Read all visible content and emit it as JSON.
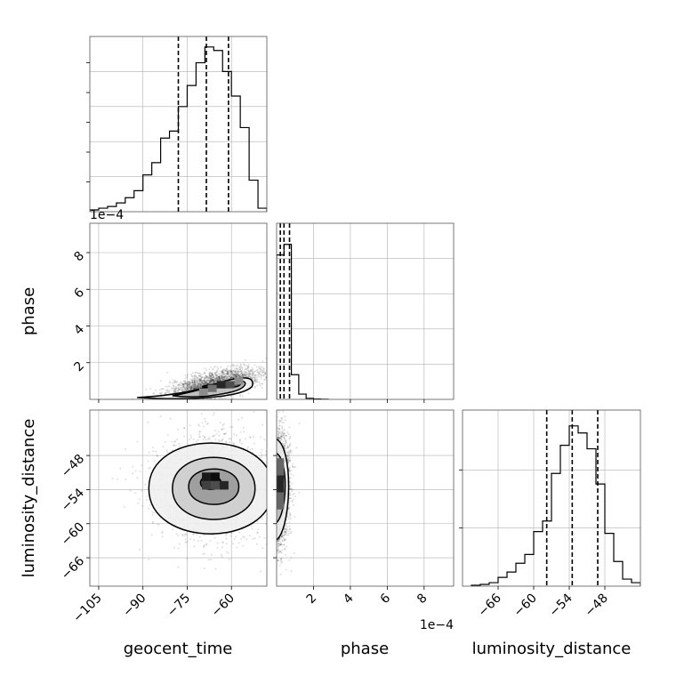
{
  "chart_data": [
    {
      "type": "histogram",
      "panel": "geocent_time",
      "xlim": [
        -108,
        -48
      ],
      "ylim": [
        0,
        1
      ],
      "bin_edges": [
        -108,
        -105,
        -102,
        -99,
        -96,
        -93,
        -90,
        -87,
        -84,
        -81,
        -78,
        -75,
        -72,
        -69,
        -66,
        -63,
        -60,
        -57,
        -54,
        -51,
        -48
      ],
      "counts": [
        0.01,
        0.02,
        0.03,
        0.05,
        0.08,
        0.12,
        0.21,
        0.28,
        0.42,
        0.46,
        0.6,
        0.72,
        0.85,
        0.94,
        0.92,
        0.8,
        0.66,
        0.48,
        0.18,
        0.02
      ],
      "quantiles": [
        -78,
        -68.5,
        -61
      ],
      "grid": true,
      "show_y_ticklabels": false
    },
    {
      "type": "scatter-density",
      "panel": "geocent_time vs phase",
      "xlim": [
        -108,
        -48
      ],
      "ylim": [
        0,
        0.00096
      ],
      "y_offset_label": "1e−4",
      "y_ticks": [
        0.0002,
        0.0004,
        0.0006,
        0.0008
      ],
      "y_ticklabels": [
        "2",
        "4",
        "6",
        "8"
      ],
      "ylabel": "phase",
      "correlation": 0.6,
      "hot_cells": [
        {
          "x": -68,
          "y": 4e-05,
          "w": 3,
          "h": 4e-05,
          "density": 0.55
        },
        {
          "x": -65,
          "y": 6e-05,
          "w": 3,
          "h": 4e-05,
          "density": 0.85
        },
        {
          "x": -62,
          "y": 6e-05,
          "w": 3,
          "h": 4e-05,
          "density": 0.7
        },
        {
          "x": -71,
          "y": 2e-05,
          "w": 3,
          "h": 4e-05,
          "density": 0.45
        },
        {
          "x": -59,
          "y": 8e-05,
          "w": 3,
          "h": 4e-05,
          "density": 0.45
        }
      ]
    },
    {
      "type": "histogram",
      "panel": "phase",
      "xlim": [
        0,
        0.00096
      ],
      "ylim": [
        0,
        1
      ],
      "bin_edges": [
        0,
        4e-05,
        8e-05,
        0.00012,
        0.00016,
        0.0002,
        0.00024,
        0.00028
      ],
      "counts": [
        0.82,
        0.88,
        0.14,
        0.03,
        0.006,
        0.002,
        0.001
      ],
      "quantiles": [
        2e-05,
        4e-05,
        7e-05
      ],
      "x_ticks": [
        0.0002,
        0.0004,
        0.0006,
        0.0008
      ],
      "x_ticklabels": [
        "2",
        "4",
        "6",
        "8"
      ],
      "x_offset_label": "1e−4",
      "grid": true
    },
    {
      "type": "scatter-density",
      "panel": "geocent_time vs luminosity_distance",
      "xlim": [
        -108,
        -48
      ],
      "ylim": [
        -71,
        -40
      ],
      "x_ticks": [
        -105,
        -90,
        -75,
        -60
      ],
      "x_ticklabels": [
        "−105",
        "−90",
        "−75",
        "−60"
      ],
      "y_ticks": [
        -48,
        -54,
        -60,
        -66
      ],
      "y_ticklabels": [
        "−48",
        "−54",
        "−60",
        "−66"
      ],
      "xlabel": "geocent_time",
      "ylabel": "luminosity_distance",
      "correlation": 0.0,
      "hot_cells": [
        {
          "x": -70,
          "y": -52.5,
          "w": 3,
          "h": 1.5,
          "density": 0.9
        },
        {
          "x": -67,
          "y": -52.5,
          "w": 3,
          "h": 1.5,
          "density": 0.95
        },
        {
          "x": -64,
          "y": -54,
          "w": 3,
          "h": 1.5,
          "density": 0.85
        },
        {
          "x": -67,
          "y": -54,
          "w": 3,
          "h": 1.5,
          "density": 0.7
        },
        {
          "x": -70,
          "y": -54,
          "w": 3,
          "h": 1.5,
          "density": 0.75
        }
      ]
    },
    {
      "type": "scatter-density",
      "panel": "phase vs luminosity_distance",
      "xlim": [
        0,
        0.00096
      ],
      "ylim": [
        -71,
        -40
      ],
      "x_ticks": [
        0.0002,
        0.0004,
        0.0006,
        0.0008
      ],
      "x_ticklabels": [
        "2",
        "4",
        "6",
        "8"
      ],
      "x_offset_label": "1e−4",
      "xlabel": "phase",
      "correlation": 0.0,
      "hot_cells": [
        {
          "x": 0.0,
          "y": -54.5,
          "w": 4e-05,
          "h": 3,
          "density": 0.85
        },
        {
          "x": 0.0,
          "y": -51.5,
          "w": 4e-05,
          "h": 3,
          "density": 0.6
        },
        {
          "x": 0.0,
          "y": -57.5,
          "w": 4e-05,
          "h": 3,
          "density": 0.6
        }
      ]
    },
    {
      "type": "histogram",
      "panel": "luminosity_distance",
      "xlim": [
        -72,
        -42
      ],
      "ylim": [
        0,
        1
      ],
      "bin_edges": [
        -70.5,
        -69,
        -67.5,
        -66,
        -64.5,
        -63,
        -61.5,
        -60,
        -58.5,
        -57,
        -55.5,
        -54,
        -52.5,
        -51,
        -49.5,
        -48,
        -46.5,
        -45,
        -43.5,
        -42
      ],
      "counts": [
        0.005,
        0.01,
        0.02,
        0.05,
        0.08,
        0.13,
        0.18,
        0.31,
        0.37,
        0.64,
        0.8,
        0.91,
        0.87,
        0.78,
        0.58,
        0.3,
        0.14,
        0.04,
        0.02
      ],
      "quantiles": [
        -57.8,
        -53.5,
        -49.2
      ],
      "x_ticks": [
        -66,
        -60,
        -54,
        -48
      ],
      "x_ticklabels": [
        "−66",
        "−60",
        "−54",
        "−48"
      ],
      "xlabel": "luminosity_distance",
      "grid": true,
      "show_y_ticklabels": false
    }
  ]
}
